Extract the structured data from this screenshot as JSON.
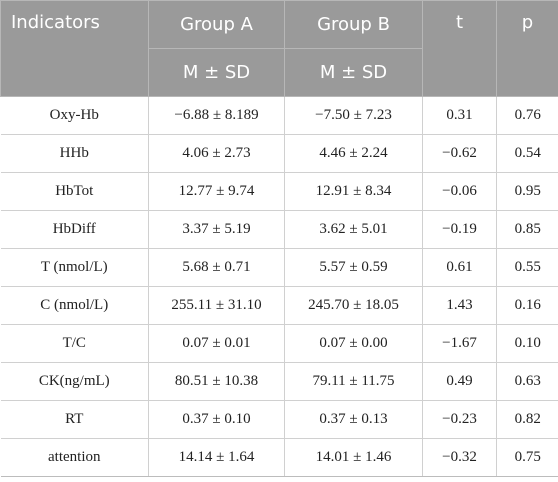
{
  "table": {
    "headers": {
      "indicators": "Indicators",
      "group_a": "Group A",
      "group_b": "Group B",
      "t": "t",
      "p": "p",
      "sub_a": "M ± SD",
      "sub_b": "M ± SD"
    },
    "rows": [
      {
        "indicator": "Oxy-Hb",
        "group_a": "−6.88 ± 8.189",
        "group_b": "−7.50 ± 7.23",
        "t": "0.31",
        "p": "0.76"
      },
      {
        "indicator": "HHb",
        "group_a": "4.06 ± 2.73",
        "group_b": "4.46 ± 2.24",
        "t": "−0.62",
        "p": "0.54"
      },
      {
        "indicator": "HbTot",
        "group_a": "12.77 ± 9.74",
        "group_b": "12.91 ± 8.34",
        "t": "−0.06",
        "p": "0.95"
      },
      {
        "indicator": "HbDiff",
        "group_a": "3.37 ± 5.19",
        "group_b": "3.62 ± 5.01",
        "t": "−0.19",
        "p": "0.85"
      },
      {
        "indicator": "T (nmol/L)",
        "group_a": "5.68 ± 0.71",
        "group_b": "5.57 ± 0.59",
        "t": "0.61",
        "p": "0.55"
      },
      {
        "indicator": "C (nmol/L)",
        "group_a": "255.11 ± 31.10",
        "group_b": "245.70 ± 18.05",
        "t": "1.43",
        "p": "0.16"
      },
      {
        "indicator": "T/C",
        "group_a": "0.07 ± 0.01",
        "group_b": "0.07 ± 0.00",
        "t": "−1.67",
        "p": "0.10"
      },
      {
        "indicator": "CK(ng/mL)",
        "group_a": "80.51 ± 10.38",
        "group_b": "79.11 ± 11.75",
        "t": "0.49",
        "p": "0.63"
      },
      {
        "indicator": "RT",
        "group_a": "0.37 ± 0.10",
        "group_b": "0.37 ± 0.13",
        "t": "−0.23",
        "p": "0.82"
      },
      {
        "indicator": "attention",
        "group_a": "14.14 ± 1.64",
        "group_b": "14.01 ± 1.46",
        "t": "−0.32",
        "p": "0.75"
      }
    ],
    "colors": {
      "header_bg": "#9a9a9a",
      "header_text": "#ffffff",
      "grid": "#d0d0d0"
    }
  }
}
